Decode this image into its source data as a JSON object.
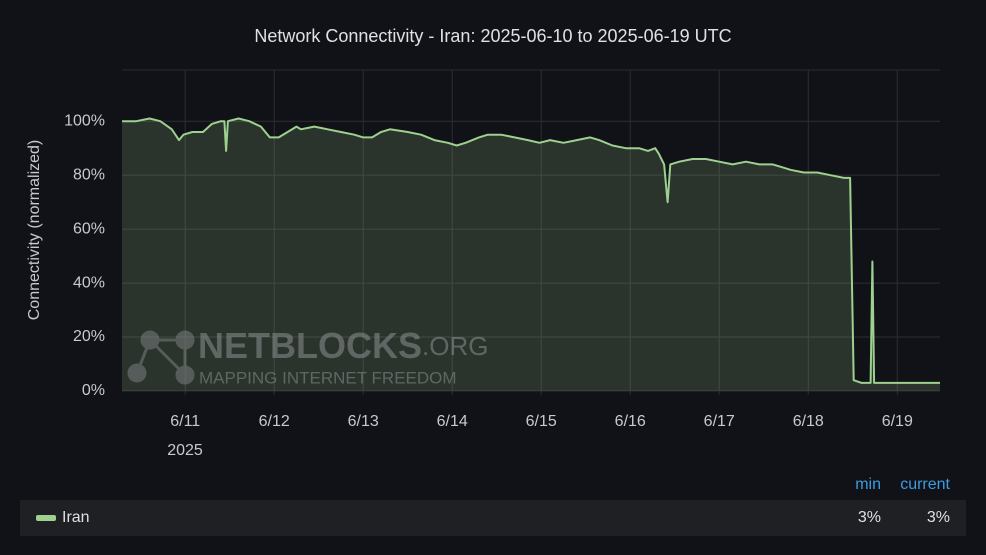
{
  "chart_data": {
    "type": "area",
    "title": "Network Connectivity - Iran: 2025-06-10 to 2025-06-19 UTC",
    "y_label": "Connectivity (normalized)",
    "x_year_label": "2025",
    "xlim": [
      10.29,
      19.48
    ],
    "xticks": [
      {
        "value": 11,
        "label": "6/11"
      },
      {
        "value": 12,
        "label": "6/12"
      },
      {
        "value": 13,
        "label": "6/13"
      },
      {
        "value": 14,
        "label": "6/14"
      },
      {
        "value": 15,
        "label": "6/15"
      },
      {
        "value": 16,
        "label": "6/16"
      },
      {
        "value": 17,
        "label": "6/17"
      },
      {
        "value": 18,
        "label": "6/18"
      },
      {
        "value": 19,
        "label": "6/19"
      }
    ],
    "ylim": [
      -1.5,
      119
    ],
    "yticks": [
      {
        "value": 0,
        "label": "0%"
      },
      {
        "value": 20,
        "label": "20%"
      },
      {
        "value": 40,
        "label": "40%"
      },
      {
        "value": 60,
        "label": "60%"
      },
      {
        "value": 80,
        "label": "80%"
      },
      {
        "value": 100,
        "label": "100%"
      }
    ],
    "grid": true,
    "series": [
      {
        "name": "Iran",
        "color": "#9ed08f",
        "x": [
          10.29,
          10.45,
          10.6,
          10.72,
          10.85,
          10.93,
          10.98,
          11.08,
          11.2,
          11.3,
          11.4,
          11.44,
          11.46,
          11.48,
          11.6,
          11.72,
          11.85,
          11.95,
          12.05,
          12.15,
          12.25,
          12.3,
          12.45,
          12.6,
          12.75,
          12.9,
          13.0,
          13.1,
          13.2,
          13.3,
          13.5,
          13.65,
          13.8,
          13.95,
          14.05,
          14.15,
          14.3,
          14.4,
          14.55,
          14.7,
          14.85,
          14.98,
          15.1,
          15.25,
          15.4,
          15.55,
          15.65,
          15.8,
          15.95,
          16.1,
          16.2,
          16.28,
          16.32,
          16.38,
          16.42,
          16.45,
          16.55,
          16.7,
          16.85,
          17.0,
          17.15,
          17.3,
          17.45,
          17.6,
          17.7,
          17.8,
          17.95,
          18.1,
          18.25,
          18.4,
          18.47,
          18.51,
          18.6,
          18.7,
          18.72,
          18.74,
          18.9,
          19.1,
          19.3,
          19.48
        ],
        "values": [
          100,
          100,
          101,
          100,
          97,
          93,
          95,
          96,
          96,
          99,
          100,
          100,
          89,
          100,
          101,
          100,
          98,
          94,
          94,
          96,
          98,
          97,
          98,
          97,
          96,
          95,
          94,
          94,
          96,
          97,
          96,
          95,
          93,
          92,
          91,
          92,
          94,
          95,
          95,
          94,
          93,
          92,
          93,
          92,
          93,
          94,
          93,
          91,
          90,
          90,
          89,
          90,
          88,
          84,
          70,
          84,
          85,
          86,
          86,
          85,
          84,
          85,
          84,
          84,
          83,
          82,
          81,
          81,
          80,
          79,
          79,
          4,
          3,
          3,
          48,
          3,
          3,
          3,
          3,
          3
        ],
        "stats": [
          {
            "name": "min",
            "value": 3,
            "label": "3%"
          },
          {
            "name": "current",
            "value": 3,
            "label": "3%"
          }
        ]
      }
    ]
  },
  "watermark": {
    "name": "NETBLOCKS",
    "suffix": ".ORG",
    "tagline": "MAPPING INTERNET FREEDOM"
  }
}
